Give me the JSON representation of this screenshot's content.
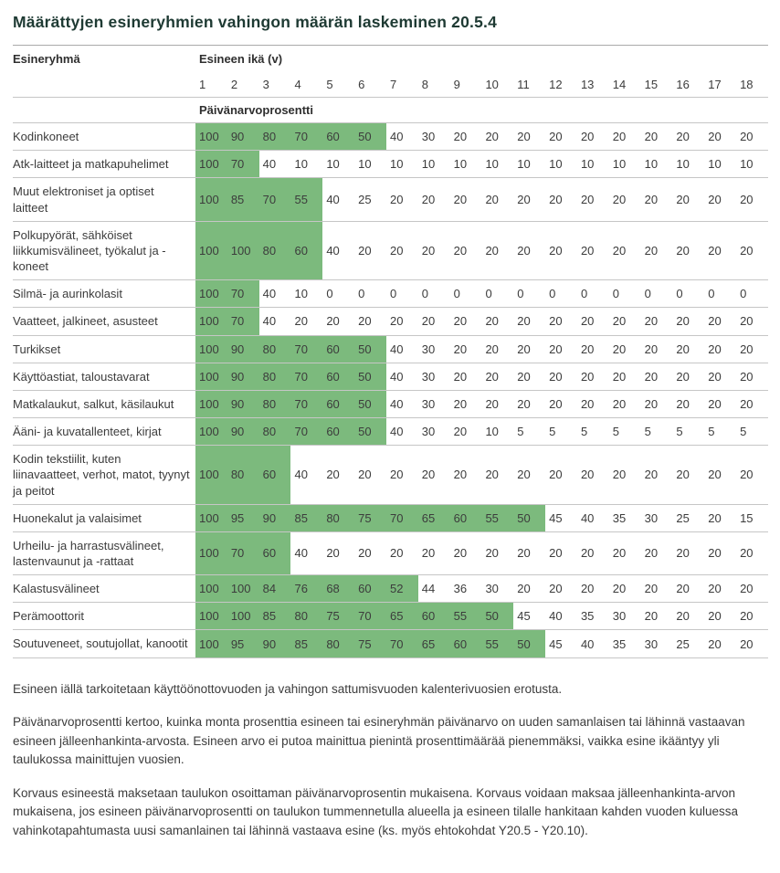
{
  "page": {
    "title": "Määrättyjen esineryhmien vahingon määrän laskeminen 20.5.4"
  },
  "table": {
    "item_group_header": "Esineryhmä",
    "age_header": "Esineen ikä (v)",
    "ages": [
      "1",
      "2",
      "3",
      "4",
      "5",
      "6",
      "7",
      "8",
      "9",
      "10",
      "11",
      "12",
      "13",
      "14",
      "15",
      "16",
      "17",
      "18"
    ],
    "subheader": "Päivänarvoprosentti",
    "highlight_color": "#7cba7d",
    "rows": [
      {
        "label": "Kodinkoneet",
        "green_cols": 6,
        "values": [
          100,
          90,
          80,
          70,
          60,
          50,
          40,
          30,
          20,
          20,
          20,
          20,
          20,
          20,
          20,
          20,
          20,
          20
        ]
      },
      {
        "label": "Atk-laitteet ja matkapuhelimet",
        "green_cols": 2,
        "values": [
          100,
          70,
          40,
          10,
          10,
          10,
          10,
          10,
          10,
          10,
          10,
          10,
          10,
          10,
          10,
          10,
          10,
          10
        ]
      },
      {
        "label": "Muut elektroniset ja optiset laitteet",
        "green_cols": 4,
        "values": [
          100,
          85,
          70,
          55,
          40,
          25,
          20,
          20,
          20,
          20,
          20,
          20,
          20,
          20,
          20,
          20,
          20,
          20
        ]
      },
      {
        "label": "Polkupyörät, sähköiset liikkumisvälineet, työkalut ja -koneet",
        "green_cols": 4,
        "values": [
          100,
          100,
          80,
          60,
          40,
          20,
          20,
          20,
          20,
          20,
          20,
          20,
          20,
          20,
          20,
          20,
          20,
          20
        ]
      },
      {
        "label": "Silmä- ja aurinkolasit",
        "green_cols": 2,
        "values": [
          100,
          70,
          40,
          10,
          0,
          0,
          0,
          0,
          0,
          0,
          0,
          0,
          0,
          0,
          0,
          0,
          0,
          0
        ]
      },
      {
        "label": "Vaatteet, jalkineet, asusteet",
        "green_cols": 2,
        "values": [
          100,
          70,
          40,
          20,
          20,
          20,
          20,
          20,
          20,
          20,
          20,
          20,
          20,
          20,
          20,
          20,
          20,
          20
        ]
      },
      {
        "label": "Turkikset",
        "green_cols": 6,
        "values": [
          100,
          90,
          80,
          70,
          60,
          50,
          40,
          30,
          20,
          20,
          20,
          20,
          20,
          20,
          20,
          20,
          20,
          20
        ]
      },
      {
        "label": "Käyttöastiat, taloustavarat",
        "green_cols": 6,
        "values": [
          100,
          90,
          80,
          70,
          60,
          50,
          40,
          30,
          20,
          20,
          20,
          20,
          20,
          20,
          20,
          20,
          20,
          20
        ]
      },
      {
        "label": "Matkalaukut, salkut, käsilaukut",
        "green_cols": 6,
        "values": [
          100,
          90,
          80,
          70,
          60,
          50,
          40,
          30,
          20,
          20,
          20,
          20,
          20,
          20,
          20,
          20,
          20,
          20
        ]
      },
      {
        "label": "Ääni- ja kuvatallenteet, kirjat",
        "green_cols": 6,
        "values": [
          100,
          90,
          80,
          70,
          60,
          50,
          40,
          30,
          20,
          10,
          5,
          5,
          5,
          5,
          5,
          5,
          5,
          5
        ]
      },
      {
        "label": "Kodin tekstiilit, kuten liinavaatteet, verhot, matot, tyynyt ja peitot",
        "green_cols": 3,
        "values": [
          100,
          80,
          60,
          40,
          20,
          20,
          20,
          20,
          20,
          20,
          20,
          20,
          20,
          20,
          20,
          20,
          20,
          20
        ]
      },
      {
        "label": "Huonekalut ja valaisimet",
        "green_cols": 11,
        "values": [
          100,
          95,
          90,
          85,
          80,
          75,
          70,
          65,
          60,
          55,
          50,
          45,
          40,
          35,
          30,
          25,
          20,
          15
        ]
      },
      {
        "label": "Urheilu- ja harrastusvälineet, lastenvaunut ja -rattaat",
        "green_cols": 3,
        "values": [
          100,
          70,
          60,
          40,
          20,
          20,
          20,
          20,
          20,
          20,
          20,
          20,
          20,
          20,
          20,
          20,
          20,
          20
        ]
      },
      {
        "label": "Kalastusvälineet",
        "green_cols": 7,
        "values": [
          100,
          100,
          84,
          76,
          68,
          60,
          52,
          44,
          36,
          30,
          20,
          20,
          20,
          20,
          20,
          20,
          20,
          20
        ]
      },
      {
        "label": "Perämoottorit",
        "green_cols": 10,
        "values": [
          100,
          100,
          85,
          80,
          75,
          70,
          65,
          60,
          55,
          50,
          45,
          40,
          35,
          30,
          20,
          20,
          20,
          20
        ]
      },
      {
        "label": "Soutuveneet, soutujollat, kanootit",
        "green_cols": 11,
        "values": [
          100,
          95,
          90,
          85,
          80,
          75,
          70,
          65,
          60,
          55,
          50,
          45,
          40,
          35,
          30,
          25,
          20,
          20
        ]
      }
    ]
  },
  "footnotes": [
    "Esineen iällä tarkoitetaan käyttöönottovuoden ja vahingon sattumisvuoden kalenterivuosien erotusta.",
    "Päivänarvoprosentti kertoo, kuinka monta prosenttia esineen tai esineryhmän päivänarvo on uuden samanlaisen tai lähinnä vastaavan esineen jälleenhankinta-arvosta. Esineen arvo ei putoa mainittua pienintä prosenttimäärää pienemmäksi, vaikka esine ikääntyy yli taulukossa mainittujen vuosien.",
    "Korvaus esineestä maksetaan taulukon osoittaman päivänarvoprosentin mukaisena. Korvaus voidaan maksaa jälleenhankinta-arvon mukaisena, jos esineen päivänarvoprosentti on taulukon tummennetulla alueella ja esineen tilalle hankitaan kahden vuoden kuluessa vahinkotapahtumasta uusi samanlainen tai lähinnä vastaava esine (ks. myös ehtokohdat Y20.5 - Y20.10)."
  ]
}
